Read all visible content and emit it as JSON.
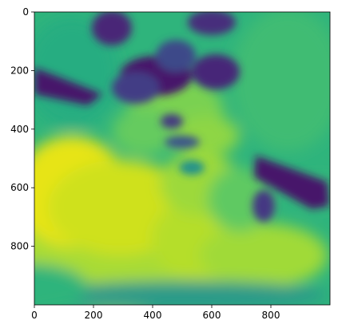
{
  "chart_data": {
    "type": "heatmap",
    "title": "",
    "xlabel": "",
    "ylabel": "",
    "colormap": "viridis",
    "colorbar": false,
    "grid": false,
    "xlim": [
      0,
      1000
    ],
    "ylim": [
      1000,
      0
    ],
    "x_ticks": [
      0,
      200,
      400,
      600,
      800
    ],
    "y_ticks": [
      0,
      200,
      400,
      600,
      800
    ],
    "x_tick_labels": [
      "0",
      "200",
      "400",
      "600",
      "800"
    ],
    "y_tick_labels": [
      "0",
      "200",
      "400",
      "600",
      "800"
    ],
    "image_description": "Blurred grayscale photo of a cat rendered with the viridis colormap",
    "palette": {
      "dark": "#46186b",
      "mid_dark": "#31688e",
      "mid": "#21a685",
      "mid_light": "#5ec962",
      "light": "#bddf26",
      "bright": "#fde725"
    }
  }
}
